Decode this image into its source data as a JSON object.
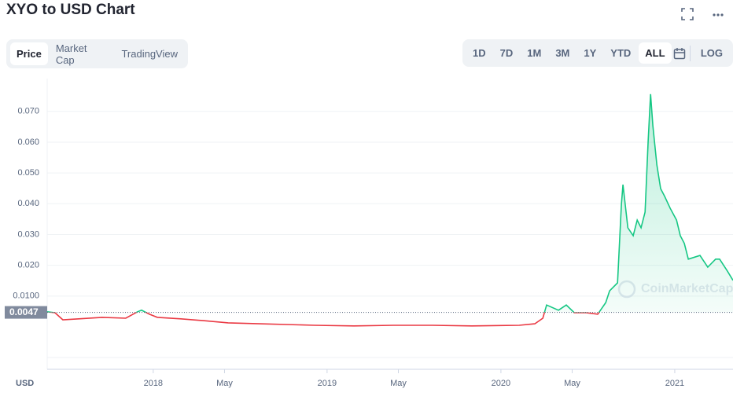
{
  "title": "XYO to USD Chart",
  "tabs": [
    "Price",
    "Market Cap",
    "TradingView"
  ],
  "active_tab": "Price",
  "ranges": [
    "1D",
    "7D",
    "1M",
    "3M",
    "1Y",
    "YTD",
    "ALL"
  ],
  "active_range": "ALL",
  "log_button": "LOG",
  "chart_data": {
    "type": "line",
    "x": [
      2017.39,
      2017.435,
      2017.48,
      2017.571,
      2017.707,
      2017.842,
      2017.91,
      2017.933,
      2017.978,
      2018.024,
      2018.159,
      2018.295,
      2018.431,
      2018.612,
      2018.928,
      2019.155,
      2019.381,
      2019.607,
      2019.833,
      2020.105,
      2020.195,
      2020.241,
      2020.263,
      2020.331,
      2020.376,
      2020.422,
      2020.49,
      2020.557,
      2020.603,
      2020.625,
      2020.671,
      2020.693,
      2020.702,
      2020.73,
      2020.761,
      2020.784,
      2020.806,
      2020.829,
      2020.847,
      2020.861,
      2020.874,
      2020.897,
      2020.919,
      2020.942,
      2020.974,
      2021.01,
      2021.032,
      2021.055,
      2021.078,
      2021.145,
      2021.19,
      2021.235,
      2021.258,
      2021.303,
      2021.335
    ],
    "values": [
      0.0049,
      0.0046,
      0.0023,
      0.0026,
      0.0031,
      0.0028,
      0.0049,
      0.0054,
      0.0041,
      0.0031,
      0.0026,
      0.002,
      0.0013,
      0.001,
      0.0005,
      0.0003,
      0.0005,
      0.0005,
      0.0003,
      0.0005,
      0.001,
      0.0028,
      0.0071,
      0.0054,
      0.0071,
      0.0046,
      0.0046,
      0.0041,
      0.0079,
      0.0117,
      0.0143,
      0.0398,
      0.0462,
      0.0322,
      0.0296,
      0.0347,
      0.0322,
      0.0373,
      0.0603,
      0.0756,
      0.0654,
      0.0526,
      0.0449,
      0.0424,
      0.0385,
      0.0347,
      0.0296,
      0.0271,
      0.022,
      0.0232,
      0.0194,
      0.022,
      0.022,
      0.0181,
      0.0151
    ],
    "up_color": "#16c784",
    "down_color": "#ea3943",
    "current_price": 0.0047,
    "xlim": [
      2017.39,
      2021.335
    ],
    "ylim": [
      0,
      0.0776
    ],
    "yticks": [
      {
        "value": 0.01,
        "label": "0.0100"
      },
      {
        "value": 0.02,
        "label": "0.020"
      },
      {
        "value": 0.03,
        "label": "0.030"
      },
      {
        "value": 0.04,
        "label": "0.040"
      },
      {
        "value": 0.05,
        "label": "0.050"
      },
      {
        "value": 0.06,
        "label": "0.060"
      },
      {
        "value": 0.07,
        "label": "0.070"
      }
    ],
    "xticks": [
      {
        "value": 2018.0,
        "label": "2018"
      },
      {
        "value": 2018.41,
        "label": "May"
      },
      {
        "value": 2019.0,
        "label": "2019"
      },
      {
        "value": 2019.41,
        "label": "May"
      },
      {
        "value": 2020.0,
        "label": "2020"
      },
      {
        "value": 2020.41,
        "label": "May"
      },
      {
        "value": 2021.0,
        "label": "2021"
      }
    ],
    "grid": true,
    "currency_label": "USD",
    "watermark": "CoinMarketCap"
  }
}
